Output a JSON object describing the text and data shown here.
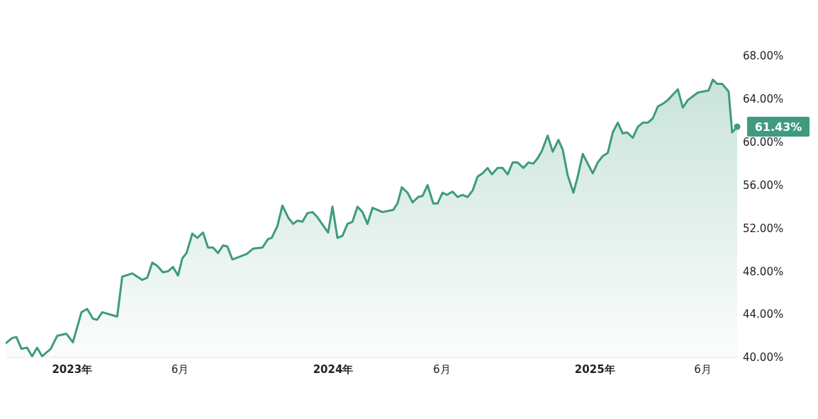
{
  "chart_data": {
    "type": "area",
    "x": [
      "2022-09-30",
      "2022-10-09",
      "2022-10-15",
      "2022-10-22",
      "2022-10-30",
      "2022-11-06",
      "2022-11-13",
      "2022-11-20",
      "2022-12-02",
      "2022-12-11",
      "2022-12-24",
      "2023-01-02",
      "2023-01-14",
      "2023-01-22",
      "2023-01-30",
      "2023-02-05",
      "2023-02-12",
      "2023-03-05",
      "2023-03-12",
      "2023-03-26",
      "2023-04-09",
      "2023-04-16",
      "2023-04-23",
      "2023-04-30",
      "2023-05-08",
      "2023-05-15",
      "2023-05-22",
      "2023-05-29",
      "2023-06-04",
      "2023-06-10",
      "2023-06-18",
      "2023-06-25",
      "2023-07-03",
      "2023-07-10",
      "2023-07-17",
      "2023-07-24",
      "2023-07-31",
      "2023-08-06",
      "2023-08-13",
      "2023-09-02",
      "2023-09-11",
      "2023-09-24",
      "2023-10-02",
      "2023-10-07",
      "2023-10-15",
      "2023-10-22",
      "2023-10-30",
      "2023-11-06",
      "2023-11-12",
      "2023-11-19",
      "2023-11-26",
      "2023-12-03",
      "2023-12-09",
      "2023-12-25",
      "2023-12-31",
      "2024-01-07",
      "2024-01-14",
      "2024-01-21",
      "2024-01-28",
      "2024-02-04",
      "2024-02-11",
      "2024-02-18",
      "2024-02-25",
      "2024-03-10",
      "2024-03-25",
      "2024-03-31",
      "2024-04-06",
      "2024-04-14",
      "2024-04-21",
      "2024-04-29",
      "2024-05-05",
      "2024-05-12",
      "2024-05-20",
      "2024-05-26",
      "2024-06-02",
      "2024-06-08",
      "2024-06-16",
      "2024-06-23",
      "2024-06-30",
      "2024-07-07",
      "2024-07-14",
      "2024-07-21",
      "2024-07-28",
      "2024-08-04",
      "2024-08-10",
      "2024-08-18",
      "2024-08-25",
      "2024-09-01",
      "2024-09-08",
      "2024-09-15",
      "2024-09-23",
      "2024-09-30",
      "2024-10-07",
      "2024-10-13",
      "2024-10-19",
      "2024-10-27",
      "2024-11-03",
      "2024-11-11",
      "2024-11-17",
      "2024-11-24",
      "2024-12-02",
      "2024-12-08",
      "2024-12-15",
      "2024-12-29",
      "2025-01-05",
      "2025-01-12",
      "2025-01-19",
      "2025-01-26",
      "2025-02-02",
      "2025-02-09",
      "2025-02-15",
      "2025-02-23",
      "2025-03-02",
      "2025-03-09",
      "2025-03-16",
      "2025-03-23",
      "2025-03-30",
      "2025-04-07",
      "2025-04-13",
      "2025-04-20",
      "2025-04-27",
      "2025-05-04",
      "2025-05-11",
      "2025-05-19",
      "2025-05-25",
      "2025-06-09",
      "2025-06-15",
      "2025-06-21",
      "2025-06-28",
      "2025-07-07",
      "2025-07-12",
      "2025-07-19"
    ],
    "series": [
      {
        "color": "#3f9a80",
        "values": [
          41.3,
          41.8,
          41.9,
          40.8,
          40.9,
          40.1,
          40.9,
          40.1,
          40.8,
          42.0,
          42.2,
          41.4,
          44.2,
          44.5,
          43.6,
          43.5,
          44.2,
          43.8,
          47.5,
          47.8,
          47.2,
          47.4,
          48.8,
          48.5,
          47.9,
          48.0,
          48.4,
          47.6,
          49.2,
          49.7,
          51.5,
          51.1,
          51.6,
          50.2,
          50.2,
          49.7,
          50.4,
          50.3,
          49.1,
          49.6,
          50.1,
          50.2,
          51.0,
          51.1,
          52.2,
          54.1,
          53.0,
          52.4,
          52.7,
          52.6,
          53.4,
          53.5,
          53.1,
          51.6,
          54.0,
          51.1,
          51.3,
          52.4,
          52.6,
          54.0,
          53.5,
          52.4,
          53.9,
          53.5,
          53.7,
          54.3,
          55.8,
          55.3,
          54.4,
          54.9,
          55.0,
          56.0,
          54.3,
          54.3,
          55.3,
          55.1,
          55.4,
          54.9,
          55.1,
          54.9,
          55.5,
          56.8,
          57.1,
          57.6,
          57.0,
          57.6,
          57.6,
          57.0,
          58.1,
          58.1,
          57.6,
          58.1,
          58.0,
          58.5,
          59.2,
          60.6,
          59.1,
          60.2,
          59.3,
          56.9,
          55.3,
          56.8,
          58.9,
          57.1,
          58.1,
          58.7,
          59.0,
          60.9,
          61.8,
          60.8,
          60.9,
          60.4,
          61.4,
          61.8,
          61.8,
          62.2,
          63.3,
          63.6,
          63.9,
          64.4,
          64.9,
          63.2,
          63.9,
          64.3,
          64.6,
          64.8,
          65.8,
          65.4,
          65.4,
          64.7,
          60.9,
          61.43
        ],
        "value_labels": [
          null,
          null,
          null,
          null,
          null,
          null,
          null,
          null,
          null,
          null,
          null,
          null,
          null,
          null,
          null,
          null,
          null,
          null,
          null,
          null,
          null,
          null,
          null,
          null,
          null,
          null,
          null,
          null,
          null,
          null,
          null,
          null,
          null,
          null,
          null,
          null,
          null,
          null,
          null,
          null,
          null,
          null,
          null,
          null,
          null,
          null,
          null,
          null,
          null,
          null,
          null,
          null,
          null,
          null,
          null,
          null,
          null,
          null,
          null,
          null,
          null,
          null,
          null,
          null,
          null,
          null,
          null,
          null,
          null,
          null,
          null,
          null,
          null,
          null,
          null,
          null,
          null,
          null,
          null,
          null,
          null,
          null,
          null,
          null,
          null,
          null,
          null,
          null,
          null,
          null,
          null,
          null,
          null,
          null,
          null,
          null,
          null,
          null,
          null,
          null,
          null,
          null,
          null,
          null,
          null,
          null,
          null,
          null,
          null,
          null,
          null,
          null,
          null,
          null,
          null,
          null,
          null,
          null,
          null,
          null,
          null,
          null,
          null,
          null,
          null,
          null,
          null,
          null,
          null,
          null,
          null,
          "61.43%"
        ]
      }
    ],
    "xticks": [
      {
        "value": "2023-01-01",
        "label": "2023年"
      },
      {
        "value": "2023-06-01",
        "label": "6月"
      },
      {
        "value": "2024-01-01",
        "label": "2024年"
      },
      {
        "value": "2024-06-01",
        "label": "6月"
      },
      {
        "value": "2025-01-01",
        "label": "2025年"
      },
      {
        "value": "2025-06-01",
        "label": "6月"
      }
    ],
    "xlim": [
      "2022-09-30",
      "2025-07-19"
    ],
    "ylim": [
      40,
      68
    ],
    "yticks": [
      {
        "value": 40,
        "label": "40.00%"
      },
      {
        "value": 44,
        "label": "44.00%"
      },
      {
        "value": 48,
        "label": "48.00%"
      },
      {
        "value": 52,
        "label": "52.00%"
      },
      {
        "value": 56,
        "label": "56.00%"
      },
      {
        "value": 60,
        "label": "60.00%"
      },
      {
        "value": 64,
        "label": "64.00%"
      },
      {
        "value": 68,
        "label": "68.00%"
      }
    ],
    "grid": false,
    "legend": false,
    "marker": "none"
  }
}
